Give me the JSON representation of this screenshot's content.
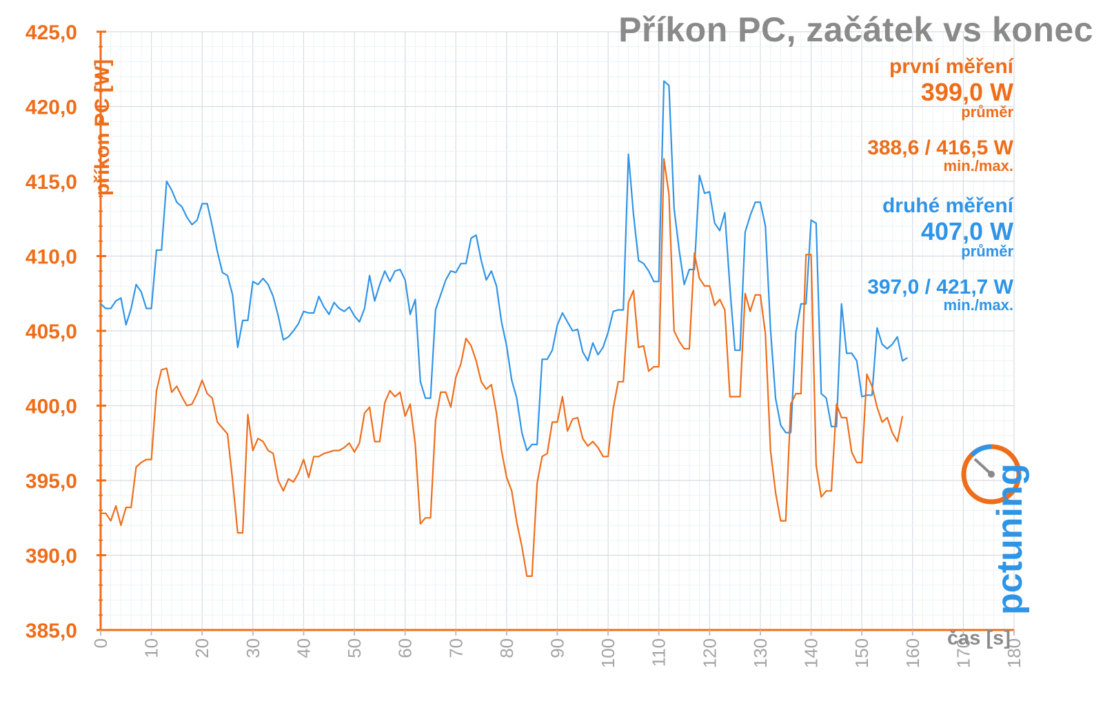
{
  "title": "Příkon PC, začátek vs konec",
  "stats": {
    "first": {
      "label": "první měření",
      "avg": "399,0 W",
      "avg_label": "průměr",
      "minmax": "388,6 / 416,5 W",
      "minmax_label": "min./max."
    },
    "second": {
      "label": "druhé měření",
      "avg": "407,0 W",
      "avg_label": "průměr",
      "minmax": "397,0 / 421,7 W",
      "minmax_label": "min./max."
    }
  },
  "logo_text": "pctuning",
  "colors": {
    "first": "#ee6d1a",
    "second": "#2f94e6",
    "axis": "#ee6d1a",
    "grid": "#dfe4ea",
    "xaxis_label": "#8a8a8a"
  },
  "chart_data": {
    "type": "line",
    "ylabel": "příkon PC [W]",
    "xlabel": "čas [s]",
    "ylim": [
      385,
      425
    ],
    "xlim": [
      0,
      180
    ],
    "y_ticks": [
      "385,0",
      "390,0",
      "395,0",
      "400,0",
      "405,0",
      "410,0",
      "415,0",
      "420,0",
      "425,0"
    ],
    "x_ticks": [
      "0",
      "10",
      "20",
      "30",
      "40",
      "50",
      "60",
      "70",
      "80",
      "90",
      "100",
      "110",
      "120",
      "130",
      "140",
      "150",
      "160",
      "170",
      "180"
    ],
    "grid": true,
    "series": [
      {
        "name": "druhé měření",
        "values": [
          406.8,
          406.5,
          406.5,
          407.0,
          407.2,
          405.4,
          406.5,
          408.1,
          407.6,
          406.5,
          406.5,
          410.4,
          410.4,
          415.0,
          414.4,
          413.6,
          413.3,
          412.6,
          412.1,
          412.4,
          413.5,
          413.5,
          412.0,
          410.3,
          408.9,
          408.7,
          407.4,
          403.9,
          405.7,
          405.7,
          408.3,
          408.1,
          408.5,
          408.1,
          407.3,
          406.0,
          404.4,
          404.6,
          405.0,
          405.5,
          406.3,
          406.2,
          406.2,
          407.3,
          406.6,
          406.1,
          406.9,
          406.5,
          406.3,
          406.6,
          406.0,
          405.6,
          406.5,
          408.7,
          407.0,
          408.1,
          409.0,
          408.3,
          409.0,
          409.1,
          408.4,
          406.1,
          407.1,
          401.6,
          400.5,
          400.5,
          406.4,
          407.4,
          408.4,
          409.0,
          408.9,
          409.5,
          409.5,
          411.2,
          411.4,
          409.7,
          408.4,
          409.0,
          408.0,
          405.6,
          404.0,
          401.7,
          400.5,
          398.2,
          397.0,
          397.4,
          397.4,
          403.1,
          403.1,
          403.7,
          405.4,
          406.2,
          405.6,
          405.0,
          405.1,
          403.6,
          403.0,
          404.2,
          403.4,
          403.9,
          404.9,
          406.3,
          406.4,
          406.4,
          416.8,
          412.8,
          409.7,
          409.5,
          409.0,
          408.3,
          408.3,
          421.7,
          421.4,
          413.2,
          410.4,
          408.1,
          409.1,
          409.1,
          415.4,
          414.2,
          414.3,
          412.2,
          411.7,
          412.9,
          407.9,
          403.7,
          403.7,
          411.6,
          412.7,
          413.6,
          413.6,
          412.0,
          405.1,
          400.5,
          398.7,
          398.2,
          398.2,
          404.9,
          406.8,
          406.8,
          412.4,
          412.2,
          400.8,
          400.5,
          398.6,
          398.6,
          406.8,
          403.5,
          403.5,
          403.0,
          400.6,
          400.7,
          400.7,
          405.2,
          404.1,
          403.8,
          404.1,
          404.6,
          403.0,
          403.2
        ]
      },
      {
        "name": "první měření",
        "values": [
          392.8,
          392.8,
          392.3,
          393.3,
          392.0,
          393.2,
          393.2,
          395.9,
          396.2,
          396.4,
          396.4,
          401.0,
          402.4,
          402.5,
          400.9,
          401.3,
          400.6,
          400.0,
          400.1,
          400.8,
          401.7,
          400.8,
          400.5,
          398.9,
          398.5,
          398.1,
          395.0,
          391.5,
          391.5,
          399.4,
          397.0,
          397.8,
          397.6,
          397.0,
          396.8,
          395.0,
          394.3,
          395.1,
          394.9,
          395.5,
          396.4,
          395.2,
          396.6,
          396.6,
          396.8,
          396.9,
          397.0,
          397.0,
          397.2,
          397.5,
          396.9,
          397.5,
          399.5,
          399.9,
          397.6,
          397.6,
          400.2,
          401.0,
          400.6,
          400.9,
          399.3,
          400.1,
          397.4,
          392.1,
          392.5,
          392.5,
          399.0,
          400.9,
          400.9,
          399.9,
          401.9,
          402.8,
          404.5,
          404.0,
          403.0,
          401.6,
          401.1,
          401.4,
          399.5,
          397.0,
          395.2,
          394.3,
          392.2,
          390.6,
          388.6,
          388.6,
          394.8,
          396.6,
          396.8,
          398.9,
          398.9,
          400.6,
          398.3,
          399.1,
          399.2,
          397.8,
          397.3,
          397.6,
          397.2,
          396.6,
          396.6,
          399.8,
          401.6,
          401.6,
          406.9,
          407.7,
          403.9,
          404.0,
          402.3,
          402.6,
          402.6,
          416.5,
          414.1,
          405.0,
          404.3,
          403.8,
          403.8,
          410.2,
          408.5,
          408.0,
          408.0,
          406.7,
          407.1,
          406.4,
          400.6,
          400.6,
          400.6,
          407.5,
          406.3,
          407.4,
          407.4,
          404.8,
          397.0,
          394.2,
          392.3,
          392.3,
          400.1,
          400.8,
          400.8,
          410.1,
          410.1,
          396.0,
          393.9,
          394.3,
          394.3,
          400.1,
          399.2,
          399.2,
          396.9,
          396.2,
          396.2,
          402.1,
          401.3,
          399.9,
          398.9,
          399.2,
          398.2,
          397.6,
          399.3
        ]
      }
    ]
  }
}
